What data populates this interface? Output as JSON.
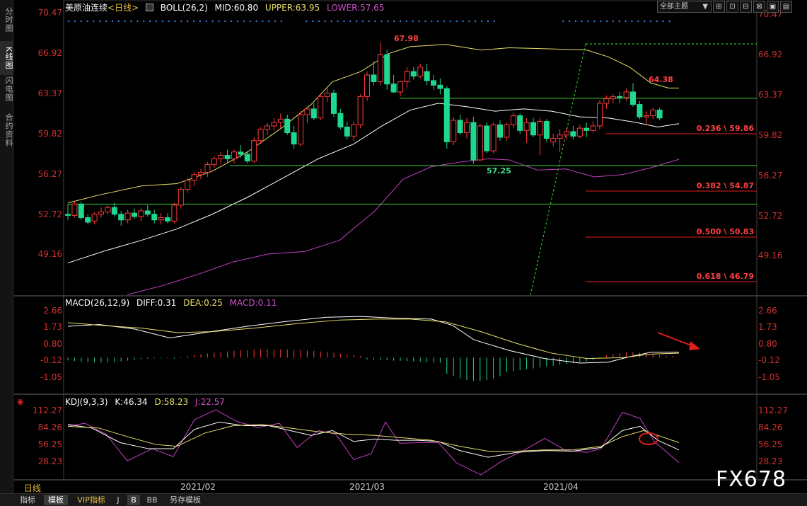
{
  "left_tabs": [
    {
      "label": "分时图",
      "active": false
    },
    {
      "label": "K线图",
      "active": true
    },
    {
      "label": "闪电图",
      "active": false
    },
    {
      "label": "合约资料",
      "active": false
    }
  ],
  "main_legend": {
    "instrument": "美原油连续",
    "period": "<日线>",
    "indicator": "BOLL(26,2)",
    "mid": "MID:60.80",
    "upper": "UPPER:63.95",
    "lower": "LOWER:57.65"
  },
  "toolbar": {
    "theme_select": "全部主题",
    "theme_arrow": "▼",
    "buttons": [
      "⊞",
      "⊡",
      "⊟",
      "⊠",
      "▣",
      "▤"
    ]
  },
  "price_ticks": [
    "70.47",
    "66.92",
    "63.37",
    "59.82",
    "56.27",
    "52.72",
    "49.16"
  ],
  "annotations": {
    "high": "67.98",
    "low": "57.25",
    "recent_high": "64.38"
  },
  "fib_levels": [
    "0.236 \\ 59.86",
    "0.382 \\ 54.87",
    "0.500 \\ 50.83",
    "0.618 \\ 46.79"
  ],
  "macd_legend": {
    "name": "MACD(26,12,9)",
    "diff": "DIFF:0.31",
    "dea": "DEA:0.25",
    "macd": "MACD:0.11"
  },
  "macd_ticks": [
    "2.66",
    "1.73",
    "0.80",
    "-0.12",
    "-1.05"
  ],
  "kdj_legend": {
    "name": "KDJ(9,3,3)",
    "k": "K:46.34",
    "d": "D:58.23",
    "j": "J:22.57"
  },
  "kdj_ticks": [
    "112.27",
    "84.26",
    "56.25",
    "28.23"
  ],
  "date_labels": [
    "2021/02",
    "2021/03",
    "2021/04"
  ],
  "period_label": "日线",
  "bottom_tabs": [
    {
      "label": "指标",
      "active": false
    },
    {
      "label": "模板",
      "active": true
    },
    {
      "label": "VIP指标",
      "active": false
    },
    {
      "label": "J",
      "active": false
    },
    {
      "label": "B",
      "active": true
    },
    {
      "label": "BB",
      "active": false
    },
    {
      "label": "另存模板",
      "active": false
    }
  ],
  "watermark": "FX678",
  "colors": {
    "up": "#ff3b3b",
    "down": "#1fd890",
    "upper_band": "#e8e06a",
    "mid_band": "#ffffff",
    "lower_band": "#c040c0",
    "support": "#3fcf3f",
    "fib": "#e02020",
    "trend": "#2fbf2f",
    "dots": "#3a7bd5"
  },
  "chart_data": {
    "type": "candlestick",
    "x_labels": [
      "2021/02",
      "2021/03",
      "2021/04"
    ],
    "y_range": [
      45.5,
      71.5
    ],
    "candles": [
      [
        52.8,
        53.1,
        52.3,
        52.7
      ],
      [
        52.7,
        53.9,
        52.5,
        53.7
      ],
      [
        53.7,
        53.9,
        52.3,
        52.5
      ],
      [
        52.5,
        52.8,
        51.9,
        52.1
      ],
      [
        52.2,
        53.0,
        51.9,
        52.8
      ],
      [
        52.8,
        53.4,
        52.5,
        53.0
      ],
      [
        53.0,
        53.6,
        52.8,
        53.4
      ],
      [
        53.4,
        53.8,
        52.6,
        52.8
      ],
      [
        52.8,
        53.1,
        51.8,
        52.3
      ],
      [
        52.3,
        53.2,
        52.0,
        52.9
      ],
      [
        52.9,
        53.3,
        52.4,
        52.6
      ],
      [
        52.6,
        53.4,
        52.2,
        53.1
      ],
      [
        53.1,
        53.6,
        52.6,
        52.8
      ],
      [
        52.8,
        53.2,
        52.0,
        52.3
      ],
      [
        52.3,
        52.9,
        51.9,
        52.5
      ],
      [
        52.5,
        52.9,
        52.0,
        52.2
      ],
      [
        52.2,
        53.8,
        52.0,
        53.6
      ],
      [
        53.6,
        55.2,
        53.3,
        55.0
      ],
      [
        55.0,
        56.0,
        54.7,
        55.8
      ],
      [
        55.8,
        56.5,
        55.3,
        56.3
      ],
      [
        56.3,
        56.8,
        55.9,
        56.5
      ],
      [
        56.5,
        57.4,
        56.1,
        57.2
      ],
      [
        57.2,
        57.9,
        56.9,
        57.7
      ],
      [
        57.7,
        58.3,
        57.2,
        58.0
      ],
      [
        58.0,
        58.5,
        57.4,
        57.7
      ],
      [
        57.7,
        58.5,
        57.3,
        58.3
      ],
      [
        58.3,
        58.9,
        57.8,
        58.1
      ],
      [
        58.1,
        58.4,
        57.3,
        57.5
      ],
      [
        57.5,
        59.6,
        57.3,
        59.3
      ],
      [
        59.3,
        60.5,
        59.0,
        60.3
      ],
      [
        60.3,
        60.9,
        59.8,
        60.6
      ],
      [
        60.6,
        61.3,
        60.2,
        60.9
      ],
      [
        60.9,
        61.7,
        60.4,
        61.2
      ],
      [
        61.2,
        61.6,
        59.8,
        60.0
      ],
      [
        60.0,
        60.6,
        58.6,
        59.0
      ],
      [
        59.0,
        61.9,
        58.8,
        61.6
      ],
      [
        61.6,
        62.3,
        60.9,
        62.1
      ],
      [
        62.1,
        62.6,
        61.1,
        61.3
      ],
      [
        61.3,
        63.4,
        61.1,
        63.2
      ],
      [
        63.2,
        63.9,
        62.7,
        63.5
      ],
      [
        63.5,
        63.8,
        61.4,
        61.7
      ],
      [
        61.7,
        62.1,
        60.3,
        60.5
      ],
      [
        60.5,
        61.0,
        59.4,
        59.7
      ],
      [
        59.7,
        61.0,
        59.3,
        60.7
      ],
      [
        60.7,
        63.4,
        60.4,
        63.2
      ],
      [
        63.2,
        65.4,
        62.8,
        65.1
      ],
      [
        65.1,
        66.3,
        64.2,
        64.5
      ],
      [
        64.5,
        67.98,
        64.2,
        66.9
      ],
      [
        66.9,
        67.3,
        63.8,
        64.3
      ],
      [
        64.3,
        65.1,
        63.5,
        63.6
      ],
      [
        63.6,
        64.6,
        63.2,
        64.5
      ],
      [
        64.5,
        65.8,
        64.0,
        65.4
      ],
      [
        65.4,
        65.8,
        64.7,
        65.0
      ],
      [
        65.0,
        66.1,
        64.8,
        65.8
      ],
      [
        65.4,
        66.1,
        64.2,
        64.6
      ],
      [
        64.6,
        65.1,
        63.8,
        64.2
      ],
      [
        64.2,
        64.8,
        63.4,
        63.9
      ],
      [
        63.9,
        64.1,
        58.6,
        59.2
      ],
      [
        59.2,
        61.4,
        58.9,
        61.1
      ],
      [
        61.1,
        61.6,
        59.8,
        60.0
      ],
      [
        60.0,
        61.3,
        59.5,
        60.9
      ],
      [
        60.9,
        61.4,
        57.25,
        57.6
      ],
      [
        57.6,
        60.8,
        57.5,
        60.6
      ],
      [
        60.6,
        60.9,
        58.2,
        58.4
      ],
      [
        58.4,
        60.9,
        58.2,
        60.7
      ],
      [
        60.7,
        61.1,
        59.3,
        59.6
      ],
      [
        59.6,
        60.9,
        59.3,
        60.7
      ],
      [
        60.7,
        61.8,
        60.4,
        61.5
      ],
      [
        61.5,
        61.7,
        59.9,
        60.2
      ],
      [
        60.2,
        61.3,
        59.1,
        60.9
      ],
      [
        60.9,
        61.3,
        59.6,
        59.8
      ],
      [
        59.8,
        61.3,
        58.0,
        61.0
      ],
      [
        61.0,
        61.2,
        59.2,
        59.5
      ],
      [
        59.2,
        59.9,
        58.8,
        59.5
      ],
      [
        59.5,
        60.3,
        58.3,
        59.8
      ],
      [
        59.8,
        60.4,
        59.4,
        60.1
      ],
      [
        60.1,
        60.6,
        59.4,
        59.7
      ],
      [
        59.7,
        60.7,
        59.5,
        60.4
      ],
      [
        60.4,
        60.9,
        59.6,
        60.2
      ],
      [
        60.2,
        61.0,
        60.0,
        60.6
      ],
      [
        60.6,
        62.9,
        60.3,
        62.6
      ],
      [
        62.6,
        63.3,
        62.1,
        63.0
      ],
      [
        63.0,
        63.4,
        62.6,
        63.2
      ],
      [
        63.2,
        63.6,
        62.6,
        63.1
      ],
      [
        63.1,
        63.9,
        62.8,
        63.6
      ],
      [
        63.6,
        64.38,
        62.3,
        62.5
      ],
      [
        62.5,
        62.8,
        61.2,
        61.4
      ],
      [
        61.4,
        61.9,
        60.7,
        61.5
      ],
      [
        61.5,
        62.2,
        61.2,
        62.0
      ],
      [
        62.0,
        62.2,
        61.1,
        61.3
      ]
    ]
  }
}
